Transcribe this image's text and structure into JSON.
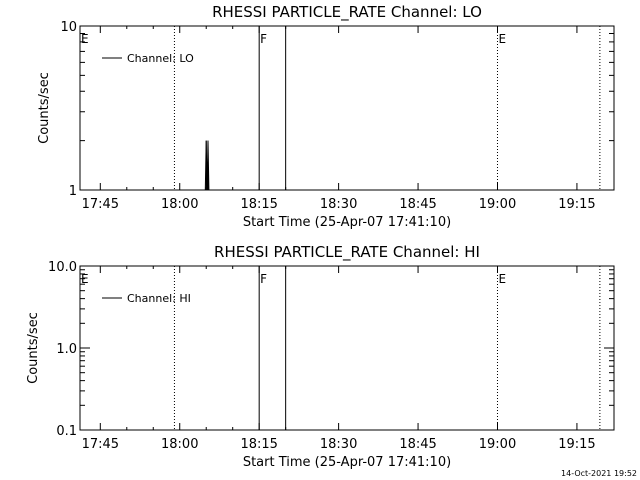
{
  "chart_data": [
    {
      "type": "line",
      "title": "RHESSI PARTICLE_RATE Channel: LO",
      "xlabel": "Start Time (25-Apr-07 17:41:10)",
      "ylabel": "Counts/sec",
      "y_scale": "log",
      "ylim": [
        1,
        10
      ],
      "y_ticks": [
        "1",
        "10"
      ],
      "xlim": [
        "17:41:10",
        "19:22:00"
      ],
      "x_ticks": [
        "17:45",
        "18:00",
        "18:15",
        "18:30",
        "18:45",
        "19:00",
        "19:15"
      ],
      "grid": false,
      "legend_position": "top-left",
      "series": [
        {
          "name": "Channel: LO",
          "points": [
            [
              "18:04:50",
              1
            ],
            [
              "18:05:00",
              2
            ],
            [
              "18:05:10",
              1
            ],
            [
              "18:05:20",
              2
            ],
            [
              "18:05:30",
              1
            ]
          ]
        }
      ],
      "markers": [
        {
          "label": "E",
          "time": "17:41:10",
          "style": "none"
        },
        {
          "label": "",
          "time": "17:59:00",
          "style": "dotted"
        },
        {
          "label": "F",
          "time": "18:15:00",
          "style": "solid"
        },
        {
          "label": "",
          "time": "18:20:00",
          "style": "solid"
        },
        {
          "label": "E",
          "time": "19:00:00",
          "style": "dotted"
        },
        {
          "label": "",
          "time": "19:19:20",
          "style": "dotted"
        }
      ]
    },
    {
      "type": "line",
      "title": "RHESSI PARTICLE_RATE Channel: HI",
      "xlabel": "Start Time (25-Apr-07 17:41:10)",
      "ylabel": "Counts/sec",
      "y_scale": "log",
      "ylim": [
        0.1,
        10
      ],
      "y_ticks": [
        "0.1",
        "1.0",
        "10.0"
      ],
      "xlim": [
        "17:41:10",
        "19:22:00"
      ],
      "x_ticks": [
        "17:45",
        "18:00",
        "18:15",
        "18:30",
        "18:45",
        "19:00",
        "19:15"
      ],
      "grid": false,
      "legend_position": "top-left",
      "series": [
        {
          "name": "Channel: HI",
          "points": []
        }
      ],
      "markers": [
        {
          "label": "E",
          "time": "17:41:10",
          "style": "none"
        },
        {
          "label": "",
          "time": "17:59:00",
          "style": "dotted"
        },
        {
          "label": "F",
          "time": "18:15:00",
          "style": "solid"
        },
        {
          "label": "",
          "time": "18:20:00",
          "style": "solid"
        },
        {
          "label": "E",
          "time": "19:00:00",
          "style": "dotted"
        },
        {
          "label": "",
          "time": "19:19:20",
          "style": "dotted"
        }
      ]
    }
  ],
  "footer": {
    "timestamp": "14-Oct-2021 19:52"
  }
}
